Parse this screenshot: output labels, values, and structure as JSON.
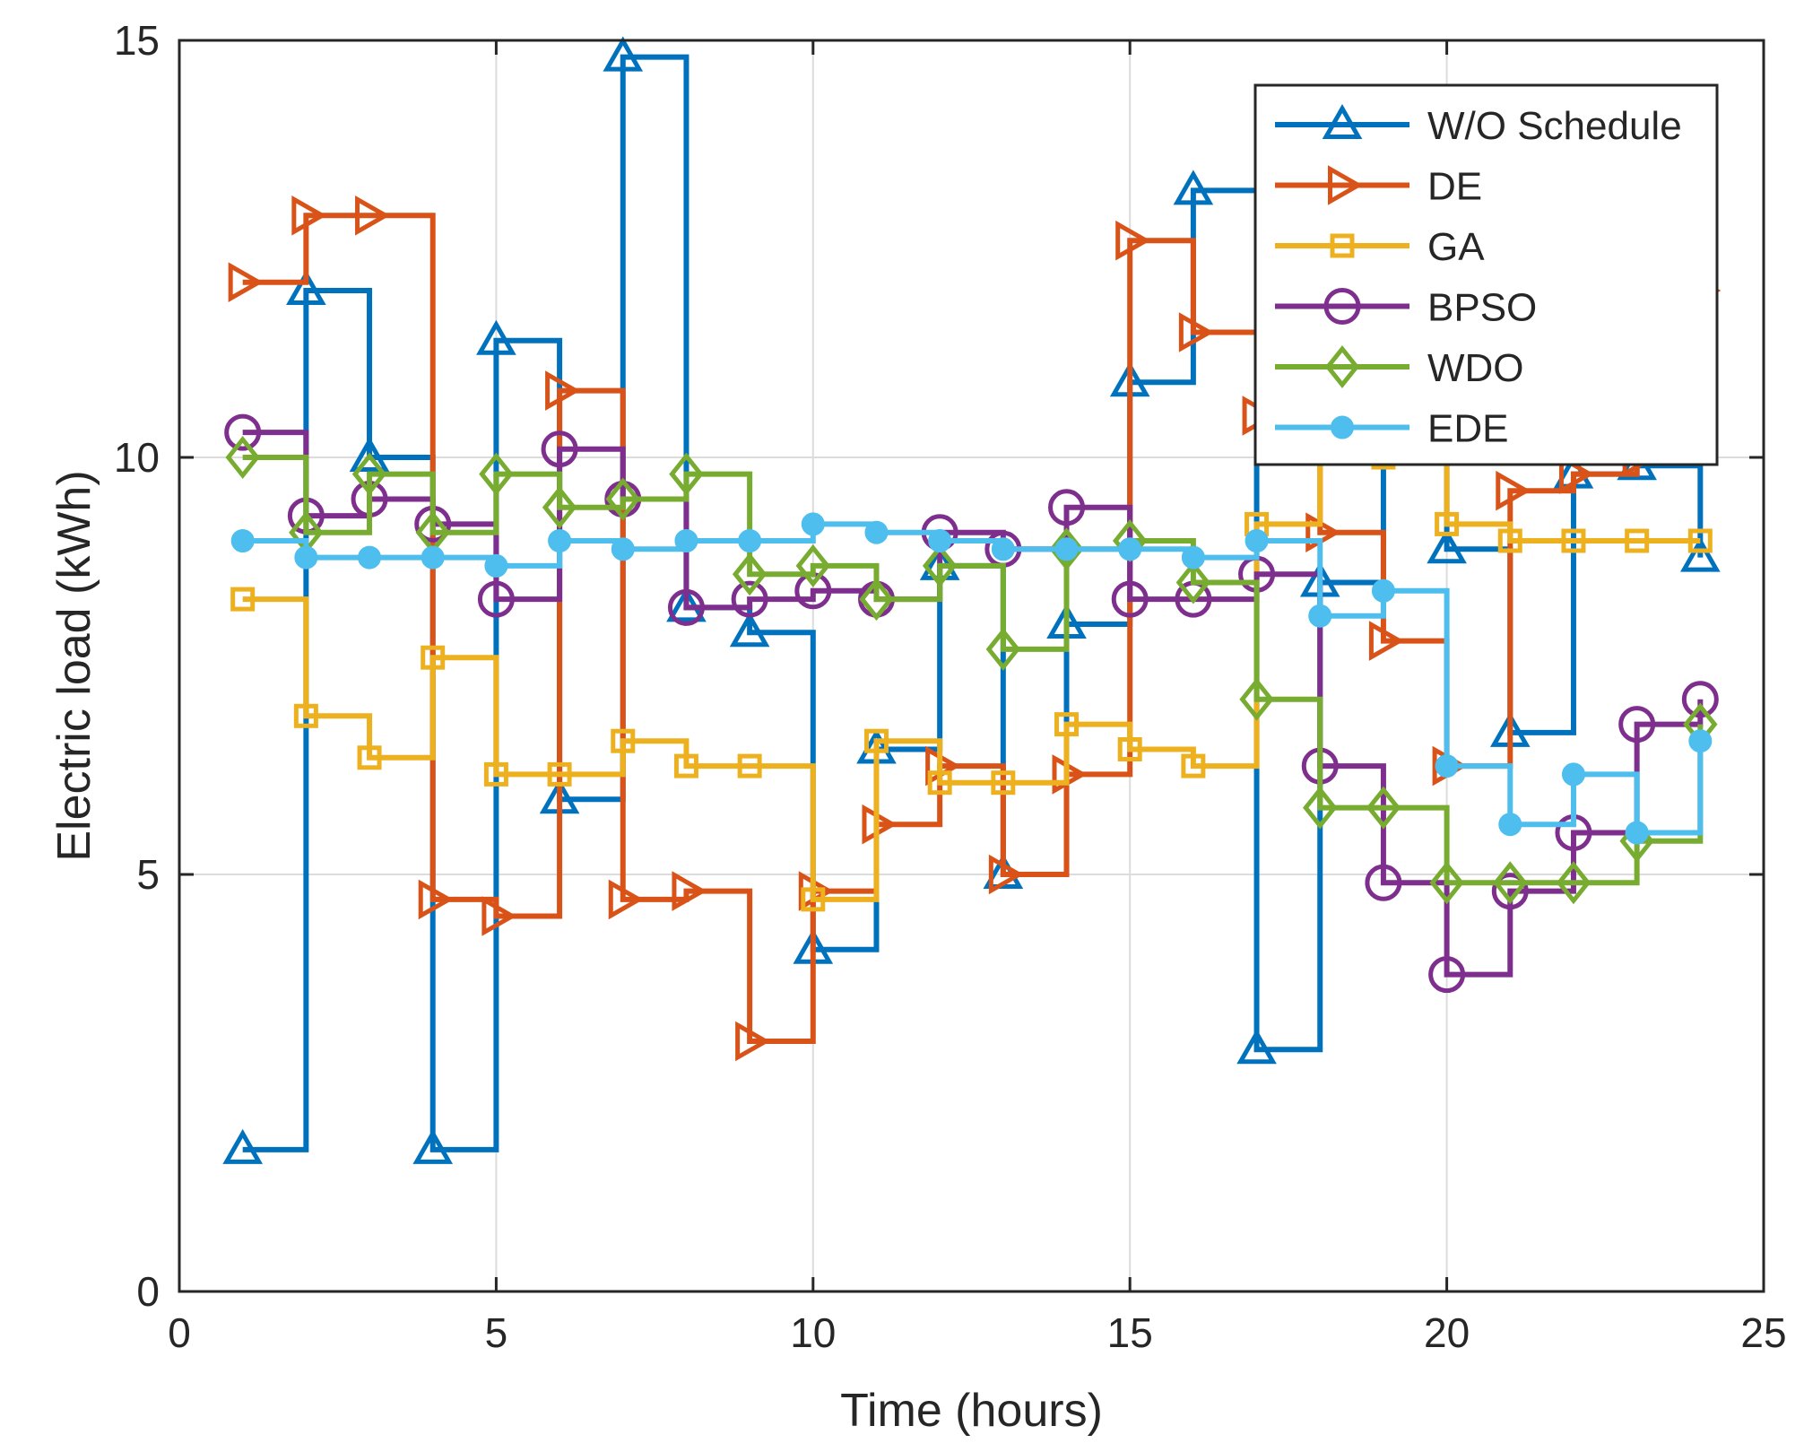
{
  "chart_data": {
    "type": "line",
    "step": true,
    "xlabel": "Time (hours)",
    "ylabel": "Electric load (kWh)",
    "xlim": [
      0,
      25
    ],
    "ylim": [
      0,
      15
    ],
    "xticks": [
      0,
      5,
      10,
      15,
      20,
      25
    ],
    "yticks": [
      0,
      5,
      10,
      15
    ],
    "grid": true,
    "legend_position": "top-right",
    "x": [
      1,
      2,
      3,
      4,
      5,
      6,
      7,
      8,
      9,
      10,
      11,
      12,
      13,
      14,
      15,
      16,
      17,
      18,
      19,
      20,
      21,
      22,
      23,
      24
    ],
    "series": [
      {
        "name": "W/O Schedule",
        "color": "#0072BD",
        "marker": "triangle-up",
        "values": [
          1.7,
          12.0,
          10.0,
          1.7,
          11.4,
          5.9,
          14.8,
          8.2,
          7.9,
          4.1,
          6.5,
          8.7,
          5.0,
          8.0,
          10.9,
          13.2,
          2.9,
          8.5,
          13.0,
          8.9,
          6.7,
          9.8,
          9.9,
          8.8
        ]
      },
      {
        "name": "DE",
        "color": "#D95319",
        "marker": "triangle-right",
        "values": [
          12.1,
          12.9,
          12.9,
          4.7,
          4.5,
          10.8,
          4.7,
          4.8,
          3.0,
          4.8,
          5.6,
          6.3,
          5.0,
          6.2,
          12.6,
          11.5,
          10.5,
          9.1,
          7.8,
          6.3,
          9.6,
          9.8,
          10.0,
          12.0
        ]
      },
      {
        "name": "GA",
        "color": "#EDB120",
        "marker": "square",
        "values": [
          8.3,
          6.9,
          6.4,
          7.6,
          6.2,
          6.2,
          6.6,
          6.3,
          6.3,
          4.7,
          6.6,
          6.1,
          6.1,
          6.8,
          6.5,
          6.3,
          9.2,
          10.5,
          10.0,
          9.2,
          9.0,
          9.0,
          9.0,
          9.0
        ]
      },
      {
        "name": "BPSO",
        "color": "#7E2F8E",
        "marker": "circle",
        "values": [
          10.3,
          9.3,
          9.5,
          9.2,
          8.3,
          10.1,
          9.5,
          8.2,
          8.3,
          8.4,
          8.3,
          9.1,
          8.9,
          9.4,
          8.3,
          8.3,
          8.6,
          6.3,
          4.9,
          3.8,
          4.8,
          5.5,
          6.8,
          7.1
        ]
      },
      {
        "name": "WDO",
        "color": "#77AC30",
        "marker": "diamond",
        "values": [
          10.0,
          9.1,
          9.8,
          9.1,
          9.8,
          9.4,
          9.5,
          9.8,
          8.6,
          8.7,
          8.3,
          8.7,
          7.7,
          8.9,
          9.0,
          8.5,
          7.1,
          5.8,
          5.8,
          4.9,
          4.9,
          4.9,
          5.4,
          6.8
        ]
      },
      {
        "name": "EDE",
        "color": "#4DBEEE",
        "marker": "dot",
        "values": [
          9.0,
          8.8,
          8.8,
          8.8,
          8.7,
          9.0,
          8.9,
          9.0,
          9.0,
          9.2,
          9.1,
          9.0,
          8.9,
          8.9,
          8.9,
          8.8,
          9.0,
          8.1,
          8.4,
          6.3,
          5.6,
          6.2,
          5.5,
          6.6
        ]
      }
    ]
  }
}
